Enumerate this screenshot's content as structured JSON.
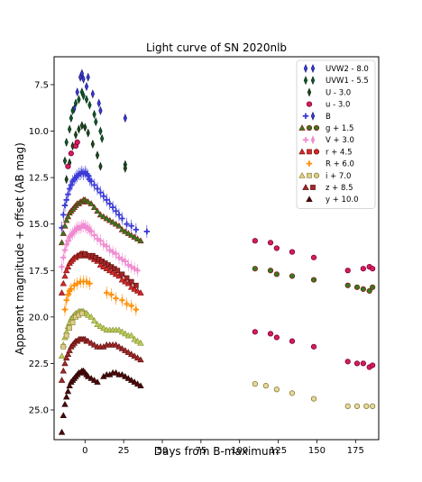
{
  "chart_data": {
    "type": "scatter",
    "title": "Light curve of SN 2020nlb",
    "xlabel": "Days from B-maximum",
    "ylabel": "Apparent magnitude + offset (AB mag)",
    "xlim": [
      -20,
      190
    ],
    "ylim": [
      26.6,
      6.0
    ],
    "y_inverted": true,
    "x_ticks": [
      "0",
      "25",
      "50",
      "75",
      "100",
      "125",
      "150",
      "175"
    ],
    "y_ticks": [
      "7.5",
      "10.0",
      "12.5",
      "15.0",
      "17.5",
      "20.0",
      "22.5",
      "25.0"
    ],
    "legend_position": "top-right",
    "grid": false,
    "series": [
      {
        "name": "UVW2 - 8.0",
        "marker": "thin-diamond",
        "color": "#3b3bd6",
        "edge": "#1a1a80",
        "x": [
          -7,
          -5,
          -3,
          -2,
          -1,
          1,
          2,
          5,
          9,
          10,
          26
        ],
        "y": [
          8.8,
          7.9,
          7.1,
          6.9,
          7.2,
          7.6,
          7.1,
          8.0,
          8.5,
          8.9,
          9.3
        ]
      },
      {
        "name": "UVW1 - 5.5",
        "marker": "thin-diamond",
        "color": "#0f5a2a",
        "edge": "#062b14",
        "x": [
          -13,
          -12,
          -10,
          -9,
          -8,
          -6,
          -4,
          -2,
          -1,
          1,
          3,
          6,
          7,
          10,
          11,
          26
        ],
        "y": [
          11.6,
          10.6,
          9.9,
          9.3,
          8.9,
          8.5,
          8.3,
          7.9,
          8.1,
          8.3,
          8.6,
          9.1,
          9.5,
          10.0,
          10.4,
          11.8
        ]
      },
      {
        "name": "U - 3.0",
        "marker": "thin-diamond",
        "color": "#1e4d1e",
        "edge": "#0a1f0a",
        "x": [
          -12,
          -10,
          -8,
          -6,
          -4,
          -2,
          0,
          2,
          5,
          8,
          10,
          26
        ],
        "y": [
          12.6,
          11.7,
          10.8,
          10.2,
          9.9,
          9.7,
          9.8,
          10.1,
          10.7,
          11.3,
          11.9,
          12.0
        ]
      },
      {
        "name": "u - 3.0",
        "marker": "circle",
        "color": "#d81b60",
        "edge": "#7a0030",
        "x": [
          -11,
          -9,
          -6,
          -5,
          110,
          120,
          124,
          134,
          148,
          170,
          180,
          184,
          186
        ],
        "y": [
          11.9,
          11.2,
          10.8,
          10.6,
          15.9,
          16.0,
          16.3,
          16.5,
          16.8,
          17.5,
          17.4,
          17.3,
          17.4
        ]
      },
      {
        "name": "B",
        "marker": "plus",
        "color": "#3b3bd6",
        "edge": "#1a1a80",
        "x": [
          -15,
          -14,
          -13,
          -12,
          -11,
          -10,
          -9,
          -8,
          -7,
          -6,
          -5,
          -4,
          -3,
          -2,
          -1,
          0,
          1,
          2,
          3,
          4,
          6,
          8,
          10,
          12,
          14,
          16,
          18,
          20,
          22,
          24,
          27,
          30,
          33,
          40
        ],
        "y": [
          15.2,
          14.5,
          14.0,
          13.7,
          13.4,
          13.1,
          12.9,
          12.7,
          12.6,
          12.5,
          12.4,
          12.3,
          12.3,
          12.2,
          12.3,
          12.2,
          12.3,
          12.4,
          12.6,
          12.7,
          12.9,
          13.1,
          13.3,
          13.5,
          13.7,
          13.9,
          14.1,
          14.3,
          14.5,
          14.7,
          15.0,
          15.1,
          15.3,
          15.4
        ]
      },
      {
        "name": "g + 1.5",
        "marker": "circle",
        "color": "#2e7d1e",
        "edge": "#8b1a1a",
        "x": [
          110,
          120,
          124,
          134,
          148,
          170,
          176,
          180,
          184,
          186
        ],
        "y": [
          17.4,
          17.5,
          17.7,
          17.8,
          18.0,
          18.3,
          18.4,
          18.5,
          18.6,
          18.4
        ]
      },
      {
        "name": "g + 1.5 tri",
        "marker": "triangle",
        "color": "#2e7d1e",
        "edge": "#8b1a1a",
        "x": [
          -15,
          -14,
          -13,
          -12,
          -11,
          -10,
          -9,
          -8,
          -7,
          -6,
          -5,
          -4,
          -3,
          -2,
          -1,
          0,
          1,
          2,
          4,
          6,
          8,
          10,
          12,
          14,
          16,
          18,
          20,
          22,
          24,
          26,
          28,
          30,
          32,
          34,
          36
        ],
        "y": [
          16.0,
          15.5,
          15.1,
          14.8,
          14.6,
          14.4,
          14.3,
          14.2,
          14.1,
          14.0,
          13.9,
          13.9,
          13.8,
          13.8,
          13.7,
          13.7,
          13.8,
          13.8,
          13.9,
          14.1,
          14.3,
          14.5,
          14.6,
          14.7,
          14.8,
          14.9,
          15.0,
          15.1,
          15.3,
          15.4,
          15.5,
          15.6,
          15.7,
          15.8,
          15.9
        ]
      },
      {
        "name": "V + 3.0",
        "marker": "plus",
        "color": "#f08bd0",
        "edge": "#f08bd0",
        "x": [
          -15,
          -14,
          -13,
          -12,
          -11,
          -10,
          -9,
          -8,
          -7,
          -6,
          -5,
          -4,
          -3,
          -2,
          -1,
          0,
          1,
          2,
          3,
          4,
          6,
          8,
          10,
          12,
          14,
          16,
          18,
          20,
          22,
          24,
          26,
          28,
          30,
          32,
          34
        ],
        "y": [
          17.3,
          16.8,
          16.4,
          16.1,
          15.9,
          15.7,
          15.6,
          15.5,
          15.4,
          15.3,
          15.2,
          15.2,
          15.2,
          15.1,
          15.1,
          15.1,
          15.2,
          15.2,
          15.3,
          15.4,
          15.6,
          15.8,
          15.9,
          16.1,
          16.2,
          16.4,
          16.5,
          16.6,
          16.8,
          16.9,
          17.0,
          17.2,
          17.3,
          17.4,
          17.5
        ]
      },
      {
        "name": "r + 4.5",
        "marker": "triangle",
        "color": "#d42a2a",
        "edge": "#7a1010",
        "x": [
          -15,
          -14,
          -13,
          -12,
          -11,
          -10,
          -9,
          -8,
          -7,
          -6,
          -5,
          -4,
          -3,
          -2,
          -1,
          0,
          1,
          2,
          4,
          6,
          8,
          10,
          12,
          14,
          16,
          18,
          20,
          22,
          24,
          26,
          28,
          30,
          32,
          34,
          36
        ],
        "y": [
          18.7,
          18.2,
          17.8,
          17.5,
          17.3,
          17.1,
          17.0,
          16.9,
          16.8,
          16.8,
          16.7,
          16.7,
          16.6,
          16.6,
          16.6,
          16.7,
          16.7,
          16.7,
          16.8,
          16.9,
          17.0,
          17.2,
          17.3,
          17.4,
          17.5,
          17.6,
          17.7,
          17.8,
          18.0,
          18.1,
          18.2,
          18.4,
          18.5,
          18.6,
          18.7
        ]
      },
      {
        "name": "r + 4.5 sq",
        "marker": "square",
        "color": "#a02828",
        "edge": "#5a0a0a",
        "x": [
          -3,
          0,
          3,
          5,
          7,
          9,
          11,
          13,
          15,
          17,
          19,
          21,
          24,
          27,
          30,
          33
        ],
        "y": [
          16.7,
          16.6,
          16.7,
          16.7,
          16.8,
          16.9,
          17.0,
          17.1,
          17.2,
          17.3,
          17.4,
          17.5,
          17.7,
          17.9,
          18.1,
          18.3
        ]
      },
      {
        "name": "r + 4.5 circ",
        "marker": "circle",
        "color": "#d81b60",
        "edge": "#7a0030",
        "x": [
          110,
          120,
          124,
          134,
          148,
          170,
          176,
          180,
          184,
          186
        ],
        "y": [
          20.8,
          20.9,
          21.1,
          21.3,
          21.6,
          22.4,
          22.5,
          22.5,
          22.7,
          22.6
        ]
      },
      {
        "name": "R + 6.0",
        "marker": "plus",
        "color": "#ff8c00",
        "edge": "#ff8c00",
        "x": [
          -13,
          -12,
          -11,
          -10,
          -9,
          -7,
          -5,
          -3,
          -1,
          1,
          3,
          14,
          17,
          20,
          24,
          27,
          30,
          33
        ],
        "y": [
          19.6,
          19.1,
          18.8,
          18.6,
          18.5,
          18.3,
          18.2,
          18.1,
          18.1,
          18.1,
          18.2,
          18.7,
          18.8,
          19.0,
          19.1,
          19.3,
          19.4,
          19.6
        ]
      },
      {
        "name": "i + 7.0",
        "marker": "triangle",
        "color": "#b8cf5a",
        "edge": "#8a8a30",
        "x": [
          -15,
          -14,
          -13,
          -12,
          -11,
          -10,
          -9,
          -8,
          -7,
          -6,
          -5,
          -4,
          -3,
          -2,
          -1,
          0,
          1,
          2,
          4,
          6,
          8,
          10,
          12,
          14,
          16,
          18,
          20,
          22,
          24,
          26,
          28,
          30,
          32,
          34,
          36
        ],
        "y": [
          22.1,
          21.5,
          21.1,
          20.8,
          20.5,
          20.3,
          20.1,
          20.0,
          19.9,
          19.8,
          19.8,
          19.7,
          19.7,
          19.7,
          19.7,
          19.8,
          19.8,
          19.9,
          20.0,
          20.2,
          20.4,
          20.5,
          20.6,
          20.7,
          20.7,
          20.7,
          20.7,
          20.7,
          20.8,
          20.9,
          21.0,
          21.0,
          21.2,
          21.3,
          21.4
        ]
      },
      {
        "name": "i + 7.0 sq",
        "marker": "square",
        "color": "#dccd8a",
        "edge": "#8a7a30",
        "x": [
          -14,
          -12,
          -10,
          -8,
          -6,
          -4,
          -2
        ],
        "y": [
          21.6,
          21.0,
          20.6,
          20.3,
          20.0,
          19.9,
          19.8
        ]
      },
      {
        "name": "i + 7.0 circ",
        "marker": "circle",
        "color": "#e6d9a0",
        "edge": "#8a7a30",
        "x": [
          110,
          117,
          124,
          134,
          148,
          170,
          176,
          182,
          186
        ],
        "y": [
          23.6,
          23.7,
          23.9,
          24.1,
          24.4,
          24.8,
          24.8,
          24.8,
          24.8
        ]
      },
      {
        "name": "z + 8.5",
        "marker": "triangle",
        "color": "#a02828",
        "edge": "#5a0a0a",
        "x": [
          -15,
          -14,
          -13,
          -12,
          -11,
          -10,
          -9,
          -8,
          -7,
          -6,
          -5,
          -4,
          -3,
          -2,
          -1,
          0,
          1,
          2,
          4,
          6,
          8,
          10,
          12,
          14,
          16,
          18,
          20,
          22,
          24,
          26,
          28,
          30,
          32,
          34,
          36
        ],
        "y": [
          23.4,
          22.9,
          22.5,
          22.2,
          22.0,
          21.8,
          21.6,
          21.5,
          21.4,
          21.3,
          21.3,
          21.2,
          21.2,
          21.2,
          21.2,
          21.2,
          21.3,
          21.3,
          21.4,
          21.5,
          21.6,
          21.6,
          21.6,
          21.5,
          21.5,
          21.5,
          21.5,
          21.6,
          21.7,
          21.8,
          21.9,
          22.0,
          22.1,
          22.2,
          22.3
        ]
      },
      {
        "name": "y + 10.0",
        "marker": "triangle",
        "color": "#4a0a0a",
        "edge": "#2a0000",
        "x": [
          -15,
          -14,
          -13,
          -12,
          -11,
          -10,
          -9,
          -8,
          -7,
          -6,
          -5,
          -4,
          -3,
          -2,
          -1,
          0,
          1,
          2,
          4,
          6,
          8,
          12,
          14,
          16,
          18,
          20,
          22,
          24,
          26,
          28,
          30,
          32,
          34,
          36
        ],
        "y": [
          26.2,
          25.3,
          24.7,
          24.3,
          24.0,
          23.7,
          23.5,
          23.4,
          23.3,
          23.2,
          23.1,
          23.0,
          23.0,
          22.9,
          22.9,
          23.0,
          23.1,
          23.2,
          23.3,
          23.4,
          23.5,
          23.2,
          23.1,
          23.1,
          23.0,
          23.0,
          23.1,
          23.1,
          23.2,
          23.3,
          23.4,
          23.5,
          23.6,
          23.7
        ]
      }
    ],
    "legend": [
      {
        "label": "UVW2 - 8.0",
        "markers": [
          "thin-diamond",
          "thin-diamond"
        ],
        "color": "#3b3bd6",
        "edge": "#1a1a80"
      },
      {
        "label": "UVW1 - 5.5",
        "markers": [
          "thin-diamond",
          "thin-diamond"
        ],
        "color": "#0f5a2a",
        "edge": "#062b14"
      },
      {
        "label": "U - 3.0",
        "markers": [
          "thin-diamond"
        ],
        "color": "#1e4d1e",
        "edge": "#0a1f0a"
      },
      {
        "label": "u - 3.0",
        "markers": [
          "circle"
        ],
        "color": "#d81b60",
        "edge": "#7a0030"
      },
      {
        "label": "B",
        "markers": [
          "plus",
          "thin-diamond"
        ],
        "color": "#3b3bd6",
        "edge": "#1a1a80"
      },
      {
        "label": "g + 1.5",
        "markers": [
          "triangle",
          "circle",
          "circle"
        ],
        "color": "#2e7d1e",
        "edge": "#8b1a1a"
      },
      {
        "label": "V + 3.0",
        "markers": [
          "plus",
          "thin-diamond"
        ],
        "color": "#f08bd0",
        "edge": "#f08bd0"
      },
      {
        "label": "r + 4.5",
        "markers": [
          "triangle",
          "square",
          "circle"
        ],
        "color": "#d42a2a",
        "edge": "#7a1010"
      },
      {
        "label": "R + 6.0",
        "markers": [
          "plus"
        ],
        "color": "#ff8c00",
        "edge": "#ff8c00"
      },
      {
        "label": "i + 7.0",
        "markers": [
          "triangle",
          "square",
          "circle"
        ],
        "color": "#dccd8a",
        "edge": "#8a7a30"
      },
      {
        "label": "z + 8.5",
        "markers": [
          "triangle",
          "square"
        ],
        "color": "#a02828",
        "edge": "#5a0a0a"
      },
      {
        "label": "y + 10.0",
        "markers": [
          "triangle"
        ],
        "color": "#4a0a0a",
        "edge": "#2a0000"
      }
    ]
  }
}
